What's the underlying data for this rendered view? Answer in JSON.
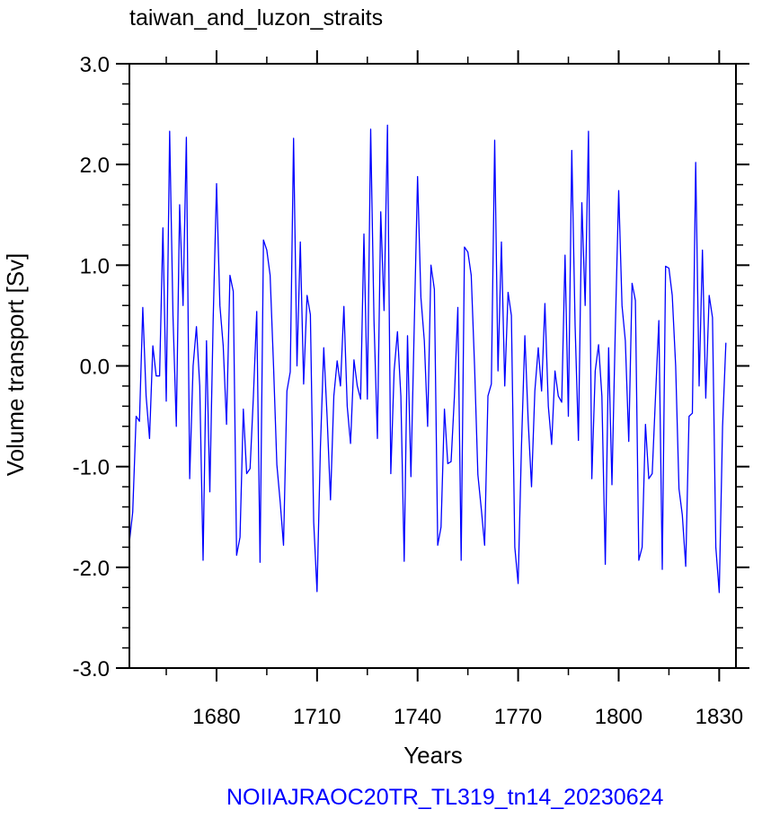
{
  "chart_data": {
    "type": "line",
    "title": "taiwan_and_luzon_straits",
    "xlabel": "Years",
    "ylabel": "Volume transport [Sv]",
    "footer": "NOIIAJRAOC20TR_TL319_tn14_20230624",
    "xlim": [
      1654,
      1835
    ],
    "ylim": [
      -3.0,
      3.0
    ],
    "x_ticks": [
      1680,
      1710,
      1740,
      1770,
      1800,
      1830
    ],
    "x_tick_labels": [
      "1680",
      "1710",
      "1740",
      "1770",
      "1800",
      "1830"
    ],
    "y_ticks": [
      -3.0,
      -2.0,
      -1.0,
      0.0,
      1.0,
      2.0,
      3.0
    ],
    "y_tick_labels": [
      "-3.0",
      "-2.0",
      "-1.0",
      "0.0",
      "1.0",
      "2.0",
      "3.0"
    ],
    "grid": false,
    "colors": {
      "line": "#0000ff",
      "footer": "#0000ff",
      "axes": "#000000"
    },
    "series": [
      {
        "x_start": 1654,
        "x_step": 1,
        "values": [
          -1.75,
          -1.45,
          -0.5,
          -0.55,
          0.58,
          -0.3,
          -0.72,
          0.2,
          -0.1,
          -0.1,
          1.37,
          -0.35,
          2.33,
          0.5,
          -0.6,
          1.6,
          0.6,
          2.27,
          -1.12,
          0.0,
          0.39,
          -0.2,
          -1.93,
          0.25,
          -1.25,
          0.45,
          1.81,
          0.6,
          0.2,
          -0.58,
          0.9,
          0.74,
          -1.88,
          -1.7,
          -0.43,
          -1.07,
          -1.02,
          -0.3,
          0.54,
          -1.95,
          1.25,
          1.15,
          0.9,
          0.0,
          -0.98,
          -1.35,
          -1.78,
          -0.25,
          -0.06,
          2.26,
          0.0,
          1.23,
          -0.18,
          0.7,
          0.51,
          -1.55,
          -2.24,
          -0.8,
          0.18,
          -0.5,
          -1.33,
          -0.3,
          0.05,
          -0.2,
          0.59,
          -0.4,
          -0.77,
          0.06,
          -0.2,
          -0.33,
          1.31,
          -0.33,
          2.35,
          0.45,
          -0.72,
          1.53,
          0.55,
          2.39,
          -1.07,
          -0.05,
          0.34,
          -0.3,
          -1.94,
          0.3,
          -1.1,
          0.4,
          1.88,
          0.68,
          0.25,
          -0.6,
          1.0,
          0.76,
          -1.78,
          -1.6,
          -0.43,
          -0.97,
          -0.95,
          -0.3,
          0.58,
          -1.93,
          1.18,
          1.13,
          0.9,
          0.0,
          -1.08,
          -1.42,
          -1.78,
          -0.3,
          -0.18,
          2.24,
          -0.05,
          1.23,
          -0.2,
          0.73,
          0.5,
          -1.8,
          -2.16,
          -0.8,
          0.3,
          -0.55,
          -1.2,
          -0.25,
          0.18,
          -0.25,
          0.62,
          -0.4,
          -0.78,
          -0.05,
          -0.3,
          -0.36,
          1.1,
          -0.5,
          2.14,
          0.4,
          -0.74,
          1.62,
          0.6,
          2.33,
          -1.12,
          -0.05,
          0.21,
          -0.3,
          -1.97,
          0.18,
          -1.18,
          0.35,
          1.74,
          0.6,
          0.25,
          -0.75,
          0.82,
          0.65,
          -1.93,
          -1.8,
          -0.58,
          -1.12,
          -1.07,
          -0.3,
          0.45,
          -2.02,
          0.99,
          0.97,
          0.7,
          0.0,
          -1.22,
          -1.48,
          -1.99,
          -0.5,
          -0.47,
          2.02,
          -0.2,
          1.15,
          -0.32,
          0.7,
          0.48,
          -1.8,
          -2.25,
          -0.6,
          0.23
        ]
      }
    ]
  }
}
